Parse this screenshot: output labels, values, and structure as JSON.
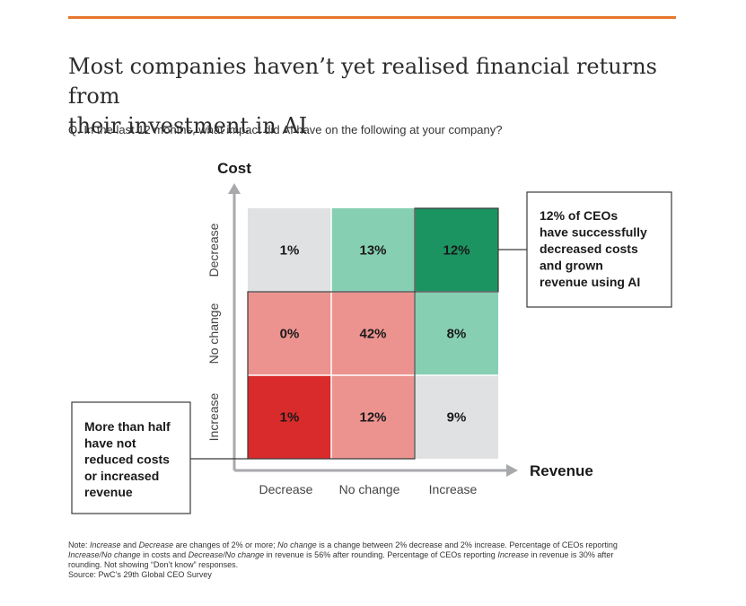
{
  "header": {
    "accent_color": "#e8772e",
    "title_line1": "Most companies haven’t yet realised financial returns from",
    "title_line2": "their investment in AI",
    "question": "Q. In the last 12 months, what impact did AI have on the following at your company?"
  },
  "chart_data": {
    "type": "heatmap",
    "xlabel": "Revenue",
    "ylabel": "Cost",
    "x_categories": [
      "Decrease",
      "No change",
      "Increase"
    ],
    "y_categories": [
      "Decrease",
      "No change",
      "Increase"
    ],
    "values": [
      [
        1,
        13,
        12
      ],
      [
        0,
        42,
        8
      ],
      [
        1,
        12,
        9
      ]
    ],
    "cell_labels": [
      [
        "1%",
        "13%",
        "12%"
      ],
      [
        "0%",
        "42%",
        "8%"
      ],
      [
        "1%",
        "12%",
        "9%"
      ]
    ],
    "cell_colors": [
      [
        "#dfe1e3",
        "#86cfb3",
        "#1b9461"
      ],
      [
        "#ec9390",
        "#ec9390",
        "#86cfb3"
      ],
      [
        "#d92b2b",
        "#ec9390",
        "#dfe1e3"
      ]
    ],
    "annotations": [
      {
        "id": "success",
        "lines": [
          "12% of CEOs",
          "have successfully",
          "decreased costs",
          "and grown",
          "revenue using AI"
        ]
      },
      {
        "id": "no_change",
        "lines": [
          "More than half",
          "have not",
          "reduced costs",
          "or increased",
          "revenue"
        ]
      }
    ],
    "axis_color": "#a7a9ac",
    "grid": false,
    "legend": "none"
  },
  "note": {
    "line1": [
      {
        "t": "Note: ",
        "i": false
      },
      {
        "t": "Increase",
        "i": true
      },
      {
        "t": " and ",
        "i": false
      },
      {
        "t": "Decrease",
        "i": true
      },
      {
        "t": " are changes of 2% or more; ",
        "i": false
      },
      {
        "t": "No change",
        "i": true
      },
      {
        "t": " is a change between 2% decrease and 2% increase. Percentage of CEOs reporting",
        "i": false
      }
    ],
    "line2": [
      {
        "t": "Increase/No change",
        "i": true
      },
      {
        "t": " in costs and ",
        "i": false
      },
      {
        "t": "Decrease/No change",
        "i": true
      },
      {
        "t": " in revenue is 56% after rounding. Percentage of CEOs reporting ",
        "i": false
      },
      {
        "t": "Increase",
        "i": true
      },
      {
        "t": " in revenue is 30% after",
        "i": false
      }
    ],
    "line3": [
      {
        "t": "rounding. Not showing “Don’t know” responses.",
        "i": false
      }
    ],
    "source": "Source: PwC’s 29th Global CEO Survey"
  }
}
